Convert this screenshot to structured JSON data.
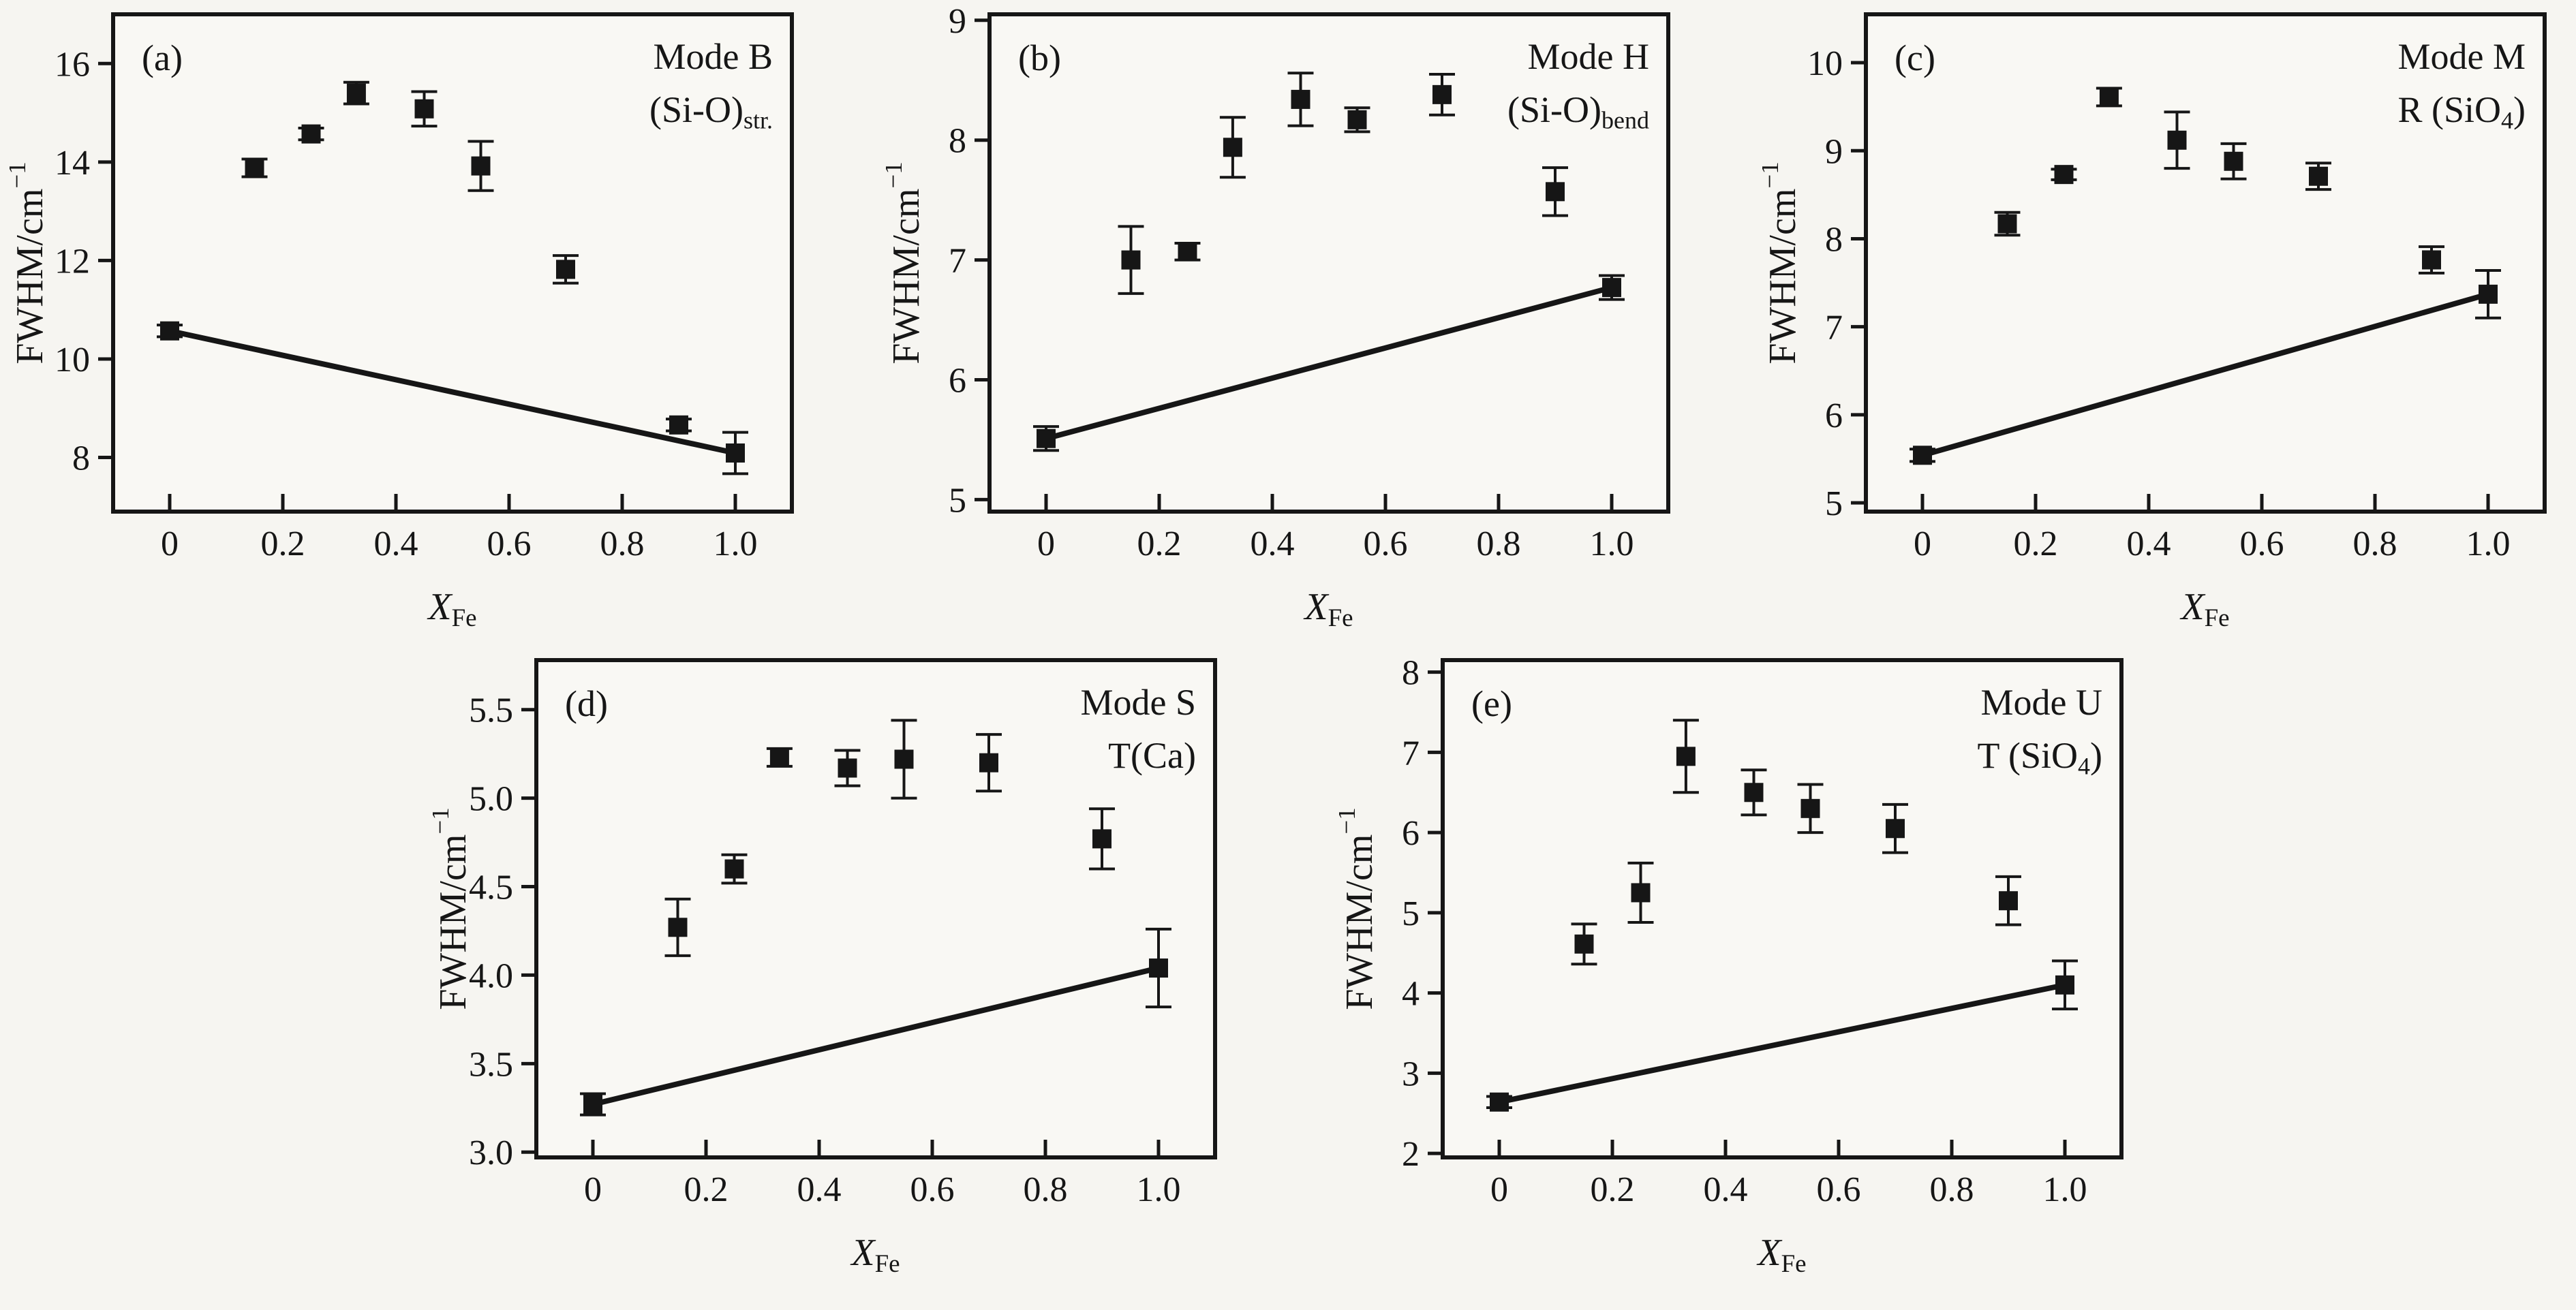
{
  "figure": {
    "background": "#f6f5f1",
    "plot_fill": "#f9f8f4",
    "ink": "#161616"
  },
  "chart_data": {
    "type": "scatter",
    "description": "FWHM of Raman modes vs iron fraction, five panels with error bars and linear mixing line",
    "shared": {
      "xlabel_parts": [
        {
          "text": "X",
          "italic": true
        },
        {
          "text": "Fe",
          "sub": true
        }
      ],
      "ylabel_parts": [
        {
          "text": "FWHM/cm"
        },
        {
          "text": "−1",
          "sup": true
        }
      ],
      "xlim": [
        -0.1,
        1.1
      ],
      "xticks": {
        "values": [
          0,
          0.2,
          0.4,
          0.6,
          0.8,
          1.0
        ],
        "labels": [
          "0",
          "0.2",
          "0.4",
          "0.6",
          "0.8",
          "1.0"
        ]
      },
      "x": [
        0,
        0.15,
        0.25,
        0.33,
        0.45,
        0.55,
        0.7,
        0.9,
        1.0
      ],
      "grid": false,
      "legend": "none",
      "marker": "filled-square"
    },
    "panels": [
      {
        "id": "a",
        "corner_label": "(a)",
        "title_lines": [
          [
            {
              "text": "Mode B"
            }
          ],
          [
            {
              "text": "(Si-O)"
            },
            {
              "text": "str.",
              "sub": true
            }
          ]
        ],
        "ylim": [
          6.9,
          17.0
        ],
        "yticks": {
          "values": [
            8,
            10,
            12,
            14,
            16
          ],
          "labels": [
            "8",
            "10",
            "12",
            "14",
            "16"
          ]
        },
        "y": [
          10.57,
          13.88,
          14.57,
          15.4,
          15.08,
          13.92,
          11.82,
          8.66,
          8.09
        ],
        "yerr": [
          0.12,
          0.18,
          0.12,
          0.22,
          0.35,
          0.5,
          0.28,
          0.12,
          0.42
        ],
        "trend": {
          "x": [
            0,
            1.0
          ],
          "y": [
            10.57,
            8.09
          ]
        }
      },
      {
        "id": "b",
        "corner_label": "(b)",
        "title_lines": [
          [
            {
              "text": "Mode H"
            }
          ],
          [
            {
              "text": "(Si-O)"
            },
            {
              "text": "bend",
              "sub": true
            }
          ]
        ],
        "ylim": [
          4.9,
          9.05
        ],
        "yticks": {
          "values": [
            5,
            6,
            7,
            8,
            9
          ],
          "labels": [
            "5",
            "6",
            "7",
            "8",
            "9"
          ]
        },
        "y": [
          5.51,
          7.0,
          7.07,
          7.94,
          8.34,
          8.17,
          8.38,
          7.57,
          6.77
        ],
        "yerr": [
          0.1,
          0.28,
          0.07,
          0.25,
          0.22,
          0.1,
          0.17,
          0.2,
          0.1
        ],
        "trend": {
          "x": [
            0,
            1.0
          ],
          "y": [
            5.51,
            6.77
          ]
        }
      },
      {
        "id": "c",
        "corner_label": "(c)",
        "title_lines": [
          [
            {
              "text": "Mode M"
            }
          ],
          [
            {
              "text": "R (SiO"
            },
            {
              "text": "4",
              "sub": true
            },
            {
              "text": ")"
            }
          ]
        ],
        "ylim": [
          4.9,
          10.55
        ],
        "yticks": {
          "values": [
            5,
            6,
            7,
            8,
            9,
            10
          ],
          "labels": [
            "5",
            "6",
            "7",
            "8",
            "9",
            "10"
          ]
        },
        "y": [
          5.54,
          8.17,
          8.73,
          9.61,
          9.12,
          8.88,
          8.71,
          7.76,
          7.37
        ],
        "yerr": [
          0.07,
          0.13,
          0.06,
          0.1,
          0.32,
          0.2,
          0.15,
          0.15,
          0.27
        ],
        "trend": {
          "x": [
            0,
            1.0
          ],
          "y": [
            5.54,
            7.37
          ]
        }
      },
      {
        "id": "d",
        "corner_label": "(d)",
        "title_lines": [
          [
            {
              "text": "Mode S"
            }
          ],
          [
            {
              "text": "T(Ca)"
            }
          ]
        ],
        "ylim": [
          2.97,
          5.78
        ],
        "yticks": {
          "values": [
            3.0,
            3.5,
            4.0,
            4.5,
            5.0,
            5.5
          ],
          "labels": [
            "3.0",
            "3.5",
            "4.0",
            "4.5",
            "5.0",
            "5.5"
          ]
        },
        "y": [
          3.27,
          4.27,
          4.6,
          5.23,
          5.17,
          5.22,
          5.2,
          4.77,
          4.04
        ],
        "yerr": [
          0.06,
          0.16,
          0.08,
          0.05,
          0.1,
          0.22,
          0.16,
          0.17,
          0.22
        ],
        "trend": {
          "x": [
            0,
            1.0
          ],
          "y": [
            3.27,
            4.04
          ]
        }
      },
      {
        "id": "e",
        "corner_label": "(e)",
        "title_lines": [
          [
            {
              "text": "Mode U"
            }
          ],
          [
            {
              "text": "T (SiO"
            },
            {
              "text": "4",
              "sub": true
            },
            {
              "text": ")"
            }
          ]
        ],
        "ylim": [
          1.95,
          8.15
        ],
        "yticks": {
          "values": [
            2,
            3,
            4,
            5,
            6,
            7,
            8
          ],
          "labels": [
            "2",
            "3",
            "4",
            "5",
            "6",
            "7",
            "8"
          ]
        },
        "y": [
          2.64,
          4.61,
          5.25,
          6.95,
          6.5,
          6.3,
          6.05,
          5.15,
          4.1
        ],
        "yerr": [
          0.07,
          0.25,
          0.37,
          0.45,
          0.28,
          0.3,
          0.3,
          0.3,
          0.3
        ],
        "trend": {
          "x": [
            0,
            1.0
          ],
          "y": [
            2.64,
            4.1
          ]
        }
      }
    ]
  }
}
